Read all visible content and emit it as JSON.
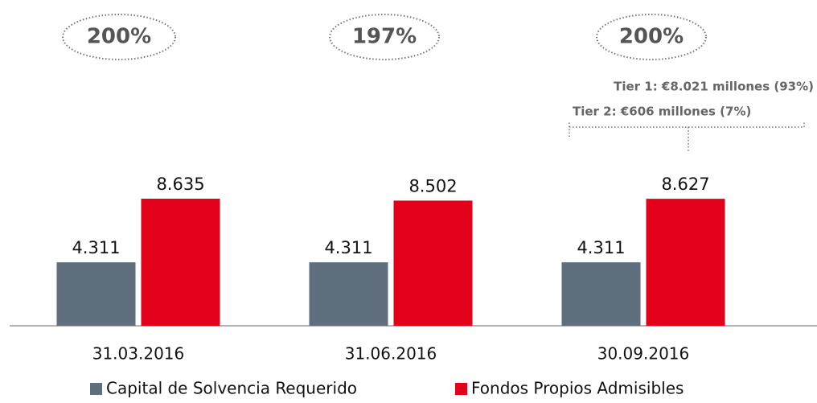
{
  "chart_data": {
    "type": "bar",
    "categories": [
      "31.03.2016",
      "31.06.2016",
      "30.09.2016"
    ],
    "series": [
      {
        "name": "Capital de Solvencia Requerido",
        "color": "#5f6f7e",
        "values": [
          4311,
          4311,
          4311
        ],
        "value_labels": [
          "4.311",
          "4.311",
          "4.311"
        ]
      },
      {
        "name": "Fondos Propios Admisibles",
        "color": "#e2001a",
        "values": [
          8635,
          8502,
          8627
        ],
        "value_labels": [
          "8.635",
          "8.502",
          "8.627"
        ]
      }
    ],
    "annotations": [
      "200%",
      "197%",
      "200%"
    ],
    "notes": [
      "Tier 1: €8.021 millones (93%)",
      "Tier 2: €606 millones (7%)"
    ],
    "ylim": [
      0,
      10000
    ]
  }
}
